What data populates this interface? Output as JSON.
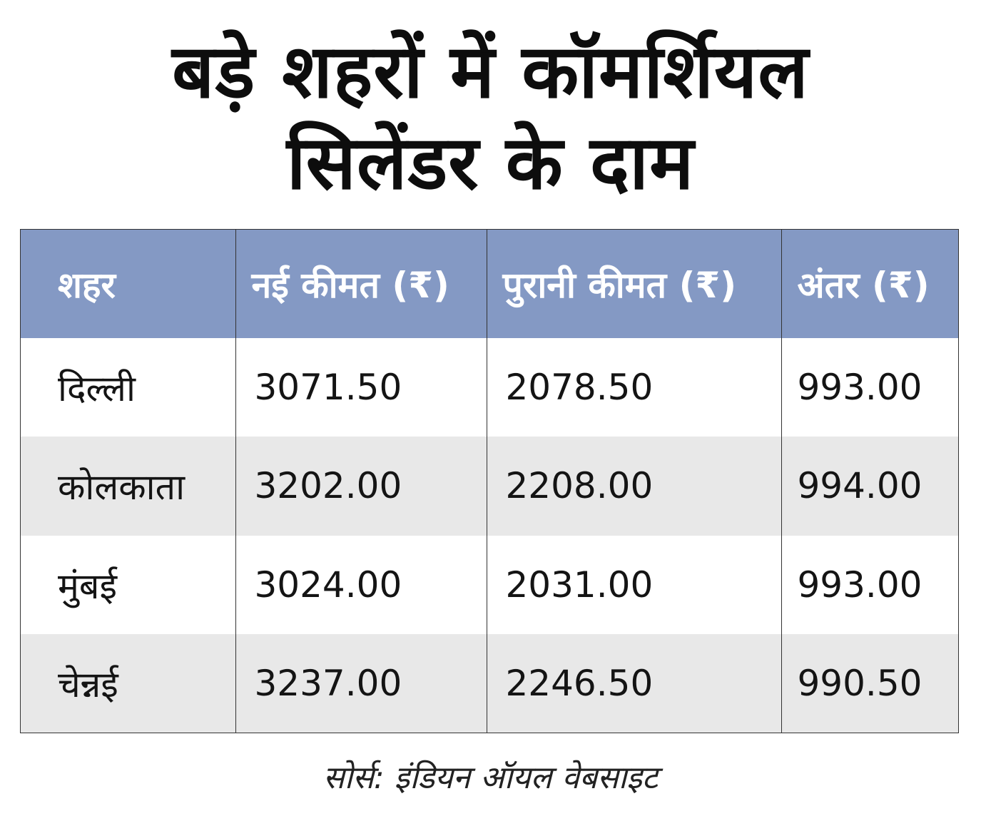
{
  "title": {
    "line1": "बड़े शहरों में कॉमर्शियल",
    "line2": "सिलेंडर के दाम"
  },
  "table": {
    "headers": [
      "शहर",
      "नई कीमत (₹)",
      "पुरानी कीमत (₹)",
      "अंतर (₹)"
    ],
    "rows": [
      [
        "दिल्ली",
        "3071.50",
        "2078.50",
        "993.00"
      ],
      [
        "कोलकाता",
        "3202.00",
        "2208.00",
        "994.00"
      ],
      [
        "मुंबई",
        "3024.00",
        "2031.00",
        "993.00"
      ],
      [
        "चेन्नई",
        "3237.00",
        "2246.50",
        "990.50"
      ]
    ]
  },
  "source": "सोर्स: इंडियन ऑयल वेबसाइट",
  "colors": {
    "header_bg": "#8499c4",
    "row_alt_bg": "#e8e8e8"
  }
}
